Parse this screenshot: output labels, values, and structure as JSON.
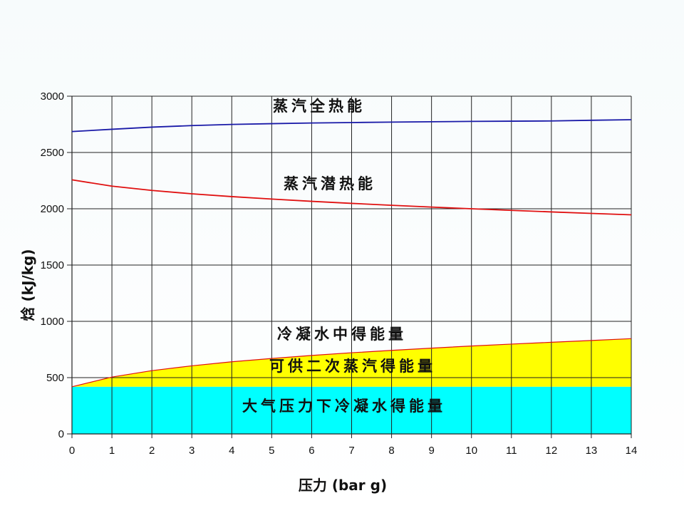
{
  "chart_data": {
    "type": "line",
    "xlabel": "压力 (bar g)",
    "ylabel": "焓 (kJ/kg)",
    "xlim": [
      0,
      14
    ],
    "ylim": [
      0,
      3000
    ],
    "x_ticks": [
      "0",
      "1",
      "2",
      "3",
      "4",
      "5",
      "6",
      "7",
      "8",
      "9",
      "10",
      "11",
      "12",
      "13",
      "14"
    ],
    "y_ticks": [
      "0",
      "500",
      "1000",
      "1500",
      "2000",
      "2500",
      "3000"
    ],
    "grid": true,
    "x": [
      0,
      1,
      2,
      3,
      4,
      5,
      6,
      7,
      8,
      9,
      10,
      11,
      12,
      13,
      14
    ],
    "series": [
      {
        "name": "蒸汽全热能",
        "color": "#1a1aa8",
        "values": [
          2686,
          2706,
          2725,
          2739,
          2749,
          2756,
          2762,
          2766,
          2770,
          2773,
          2776,
          2778,
          2780,
          2786,
          2791
        ]
      },
      {
        "name": "蒸汽潜热能",
        "color": "#e01010",
        "values": [
          2257,
          2201,
          2163,
          2133,
          2108,
          2086,
          2066,
          2048,
          2031,
          2015,
          2000,
          1986,
          1972,
          1959,
          1946
        ]
      },
      {
        "name": "冷凝水中得能量",
        "color": "#e01010",
        "fill": "#ffff00",
        "values": [
          419,
          505,
          562,
          605,
          641,
          670,
          697,
          721,
          742,
          762,
          781,
          798,
          814,
          830,
          846
        ]
      },
      {
        "name": "大气压力下冷凝水得能量",
        "fill": "#00ffff",
        "values": [
          419,
          419,
          419,
          419,
          419,
          419,
          419,
          419,
          419,
          419,
          419,
          419,
          419,
          419,
          419
        ]
      }
    ],
    "annotations": {
      "total_heat": "蒸汽全热能",
      "latent_heat": "蒸汽潜热能",
      "condensate_heat": "冷凝水中得能量",
      "flash_steam": "可供二次蒸汽得能量",
      "atmospheric_condensate": "大气压力下冷凝水得能量"
    }
  }
}
